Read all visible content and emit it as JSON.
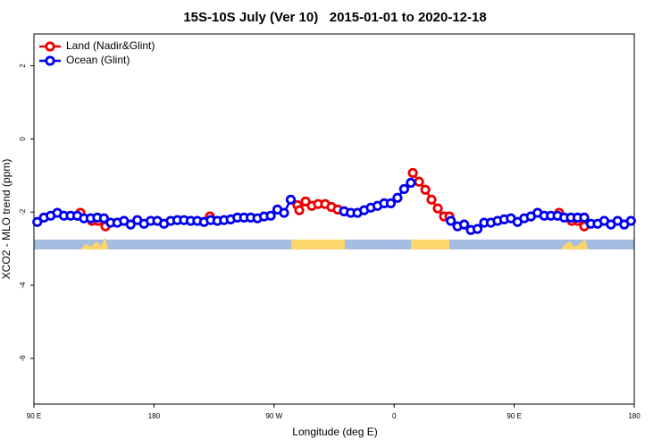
{
  "chart_data": {
    "type": "line",
    "title": "15S-10S July (Ver 10)   2015-01-01 to 2020-12-18",
    "x_label": "Longitude (deg E)",
    "y_label": "XCO2 - MLO trend (ppm)",
    "xlim": [
      90,
      540
    ],
    "ylim": [
      -7.25,
      2.87
    ],
    "xticks": [
      {
        "value": 90,
        "label": "90 E"
      },
      180,
      {
        "value": 270,
        "label": "90 W"
      },
      {
        "value": 360,
        "label": "0"
      },
      {
        "value": 450,
        "label": "90 E"
      },
      {
        "value": 540,
        "label": "180"
      }
    ],
    "yticks": [
      -6,
      -4,
      -2,
      0,
      2
    ],
    "legend": "top-left",
    "series": [
      {
        "name": "Land (Nadir&Glint)",
        "color": "#ee0000",
        "x": [
          124.8,
          133.5,
          138.2,
          143.6,
          180,
          221.9,
          250,
          287.5,
          288.9,
          293.6,
          298.3,
          303,
          308.3,
          313,
          317.7,
          322.4,
          350,
          374,
          378.7,
          383.4,
          388,
          392.7,
          397.4,
          401.4,
          450,
          483.7,
          493.1,
          497.8,
          502.5
        ],
        "values": [
          -2.02,
          -2.24,
          -2.24,
          -2.39,
          null,
          -2.12,
          null,
          -1.81,
          -1.95,
          -1.71,
          -1.83,
          -1.78,
          -1.78,
          -1.86,
          -1.93,
          -1.98,
          null,
          -0.93,
          -1.17,
          -1.39,
          -1.66,
          -1.9,
          -2.12,
          -2.12,
          null,
          -2.02,
          -2.24,
          -2.24,
          -2.39
        ]
      },
      {
        "name": "Ocean (Glint)",
        "color": "#0000ee",
        "x": [
          92.5,
          97.5,
          102.5,
          107.5,
          112.5,
          117.5,
          122.5,
          127.5,
          132.5,
          137.5,
          142.5,
          147.5,
          152.5,
          157.5,
          162.5,
          167.5,
          172.5,
          177.5,
          182.5,
          187.5,
          192.5,
          197.5,
          202.5,
          207.5,
          212.5,
          217.5,
          222.5,
          227.5,
          232.5,
          237.5,
          242.5,
          247.5,
          252.5,
          257.5,
          262.5,
          267.5,
          272.5,
          277.5,
          282.5,
          302.5,
          322.5,
          327.5,
          332.5,
          337.5,
          342.5,
          347.5,
          352.5,
          357.5,
          362.5,
          367.5,
          372.5,
          387.5,
          402.5,
          407.5,
          412.5,
          417.5,
          422.5,
          427.5,
          432.5,
          437.5,
          442.5,
          447.5,
          452.5,
          457.5,
          462.5,
          467.5,
          472.5,
          477.5,
          482.5,
          487.5,
          492.5,
          497.5,
          502.5,
          507.5,
          512.5,
          517.5,
          522.5,
          527.5,
          532.5,
          537.5
        ],
        "values": [
          -2.27,
          -2.15,
          -2.1,
          -2.02,
          -2.1,
          -2.1,
          -2.1,
          -2.17,
          -2.17,
          -2.15,
          -2.17,
          -2.29,
          -2.29,
          -2.24,
          -2.34,
          -2.22,
          -2.32,
          -2.24,
          -2.24,
          -2.32,
          -2.24,
          -2.22,
          -2.22,
          -2.24,
          -2.24,
          -2.27,
          -2.22,
          -2.24,
          -2.22,
          -2.2,
          -2.15,
          -2.15,
          -2.15,
          -2.17,
          -2.12,
          -2.1,
          -1.93,
          -2.02,
          -1.66,
          null,
          -1.98,
          -2.02,
          -2.02,
          -1.95,
          -1.88,
          -1.83,
          -1.76,
          -1.76,
          -1.61,
          -1.37,
          -1.2,
          null,
          -2.24,
          -2.39,
          -2.34,
          -2.49,
          -2.46,
          -2.29,
          -2.29,
          -2.24,
          -2.2,
          -2.17,
          -2.27,
          -2.17,
          -2.12,
          -2.02,
          -2.1,
          -2.1,
          -2.1,
          -2.15,
          -2.15,
          -2.15,
          -2.15,
          -2.32,
          -2.32,
          -2.24,
          -2.34,
          -2.24,
          -2.34,
          -2.24
        ]
      }
    ]
  }
}
